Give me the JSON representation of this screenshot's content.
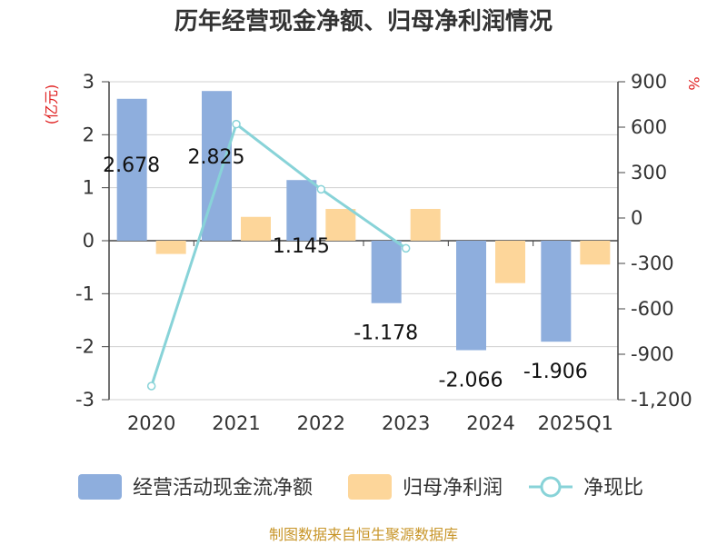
{
  "chart_data": {
    "title": "历年经营现金净额、归母净利润情况",
    "type": "bar+line",
    "categories": [
      "2020",
      "2021",
      "2022",
      "2023",
      "2024",
      "2025Q1"
    ],
    "left_axis": {
      "unit": "(亿元)",
      "ticks": [
        "3",
        "2",
        "1",
        "0",
        "-1",
        "-2",
        "-3"
      ],
      "ylim": [
        -3,
        3
      ]
    },
    "right_axis": {
      "unit": "%",
      "ticks": [
        "900",
        "600",
        "300",
        "0",
        "-300",
        "-600",
        "-900",
        "-1,200"
      ],
      "ylim": [
        -1200,
        900
      ]
    },
    "series": [
      {
        "name": "经营活动现金流净额",
        "type": "bar",
        "axis": "left",
        "color": "#8eaedd",
        "values": [
          2.678,
          2.825,
          1.145,
          -1.178,
          -2.066,
          -1.906
        ],
        "labels": [
          "2.678",
          "2.825",
          "1.145",
          "-1.178",
          "-2.066",
          "-1.906"
        ]
      },
      {
        "name": "归母净利润",
        "type": "bar",
        "axis": "left",
        "color": "#fdd69a",
        "values": [
          -0.25,
          0.45,
          0.6,
          0.6,
          -0.8,
          -0.45
        ]
      },
      {
        "name": "净现比",
        "type": "line",
        "axis": "right",
        "color": "#88d3d8",
        "values": [
          -1110,
          620,
          190,
          -200,
          null,
          null
        ]
      }
    ],
    "grid": true,
    "legend_position": "bottom"
  },
  "source": "制图数据来自恒生聚源数据库"
}
